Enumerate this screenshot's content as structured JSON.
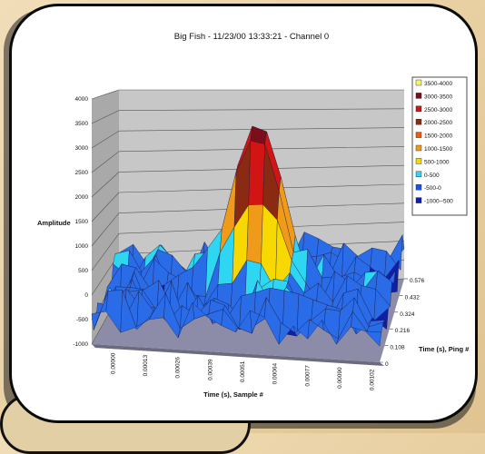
{
  "chart_data": {
    "type": "surface-3d",
    "title": "Big Fish - 11/23/00 13:33:21 - Channel 0",
    "zlabel": "Amplitude",
    "xlabel": "Time (s), Sample #",
    "ylabel": "Time (s), Ping #",
    "z_ticks": [
      "-1000",
      "-500",
      "0",
      "500",
      "1000",
      "1500",
      "2000",
      "2500",
      "3000",
      "3500",
      "4000"
    ],
    "zlim": [
      -1000,
      4000
    ],
    "x_ticks": [
      "0.00000",
      "0.00013",
      "0.00026",
      "0.00039",
      "0.00051",
      "0.00064",
      "0.00077",
      "0.00090",
      "0.00102"
    ],
    "y_ticks": [
      "0",
      "0.108",
      "0.216",
      "0.324",
      "0.432",
      "0.576"
    ],
    "legend_position": "right",
    "legend": [
      {
        "label": "3500-4000",
        "color": "#f6f36a"
      },
      {
        "label": "3000-3500",
        "color": "#7a0f1a"
      },
      {
        "label": "2500-3000",
        "color": "#d21414"
      },
      {
        "label": "2000-2500",
        "color": "#8a2a12"
      },
      {
        "label": "1500-2000",
        "color": "#e85d10"
      },
      {
        "label": "1000-1500",
        "color": "#f09a1a"
      },
      {
        "label": "500-1000",
        "color": "#f7d800"
      },
      {
        "label": "0-500",
        "color": "#2fd6f2"
      },
      {
        "label": "-500-0",
        "color": "#1a55e6"
      },
      {
        "label": "-1000--500",
        "color": "#101fa8"
      }
    ],
    "peak_value": 3700,
    "base_noise_range": [
      -800,
      300
    ]
  }
}
